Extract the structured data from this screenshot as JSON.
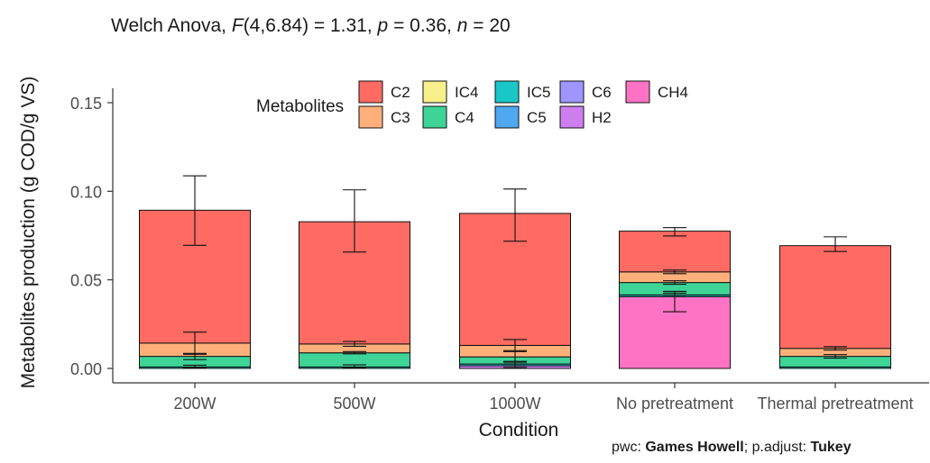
{
  "chart_data": {
    "type": "bar",
    "stacked": true,
    "title_parts": {
      "test": "Welch Anova, ",
      "stat_symbol": "F",
      "stat_args": "(4,6.84) = 1.31, ",
      "p_symbol": "p",
      "p_value": " = 0.36, ",
      "n_symbol": "n",
      "n_value": " = 20"
    },
    "xlabel": "Condition",
    "ylabel": "Metabolites production (g COD/g VS)",
    "ylim": [
      -0.007,
      0.157
    ],
    "yticks": [
      0.0,
      0.05,
      0.1,
      0.15
    ],
    "ytick_labels": [
      "0.00",
      "0.05",
      "0.10",
      "0.15"
    ],
    "categories": [
      "200W",
      "500W",
      "1000W",
      "No pretreatment",
      "Thermal pretreatment"
    ],
    "legend": {
      "title": "Metabolites",
      "position": "top",
      "entries": [
        {
          "label": "C2",
          "color": "#FF6B63"
        },
        {
          "label": "C3",
          "color": "#FFB07A"
        },
        {
          "label": "IC4",
          "color": "#F8F08A"
        },
        {
          "label": "C4",
          "color": "#3ED497"
        },
        {
          "label": "IC5",
          "color": "#19C6C8"
        },
        {
          "label": "C5",
          "color": "#4FA8F0"
        },
        {
          "label": "C6",
          "color": "#9E95FF"
        },
        {
          "label": "H2",
          "color": "#CF7EF0"
        },
        {
          "label": "CH4",
          "color": "#FF72C4"
        }
      ]
    },
    "series": [
      {
        "name": "CH4",
        "color": "#FF72C4",
        "values": [
          0.0,
          0.0,
          0.0,
          0.0405,
          0.0
        ]
      },
      {
        "name": "H2",
        "color": "#CF7EF0",
        "values": [
          0.0,
          0.0,
          0.0015,
          0.0,
          0.0
        ]
      },
      {
        "name": "C6",
        "color": "#9E95FF",
        "values": [
          0.0,
          0.0,
          0.0,
          0.0,
          0.0
        ]
      },
      {
        "name": "C5",
        "color": "#4FA8F0",
        "values": [
          0.0,
          0.0,
          0.0,
          0.0,
          0.0
        ]
      },
      {
        "name": "IC5",
        "color": "#19C6C8",
        "values": [
          0.0008,
          0.0008,
          0.001,
          0.001,
          0.0008
        ]
      },
      {
        "name": "C4",
        "color": "#3ED497",
        "values": [
          0.006,
          0.008,
          0.004,
          0.007,
          0.006
        ]
      },
      {
        "name": "IC4",
        "color": "#F8F08A",
        "values": [
          0.0,
          0.0,
          0.0,
          0.0,
          0.0
        ]
      },
      {
        "name": "C3",
        "color": "#FFB07A",
        "values": [
          0.0075,
          0.005,
          0.0065,
          0.006,
          0.0045
        ]
      },
      {
        "name": "C2",
        "color": "#FF6B63",
        "values": [
          0.075,
          0.069,
          0.0745,
          0.023,
          0.058
        ]
      }
    ],
    "error_bars": [
      {
        "category": "200W",
        "y": 0.0012,
        "low": 0.0005,
        "high": 0.0018
      },
      {
        "category": "200W",
        "y": 0.0065,
        "low": 0.005,
        "high": 0.0085
      },
      {
        "category": "200W",
        "y": 0.0143,
        "low": 0.008,
        "high": 0.0205
      },
      {
        "category": "200W",
        "y": 0.0893,
        "low": 0.0695,
        "high": 0.1087
      },
      {
        "category": "500W",
        "y": 0.0012,
        "low": 0.0005,
        "high": 0.002
      },
      {
        "category": "500W",
        "y": 0.0088,
        "low": 0.0082,
        "high": 0.0095
      },
      {
        "category": "500W",
        "y": 0.0138,
        "low": 0.0125,
        "high": 0.0152
      },
      {
        "category": "500W",
        "y": 0.0828,
        "low": 0.0657,
        "high": 0.1008
      },
      {
        "category": "1000W",
        "y": 0.0015,
        "low": 0.0005,
        "high": 0.0025
      },
      {
        "category": "1000W",
        "y": 0.0025,
        "low": 0.0015,
        "high": 0.004
      },
      {
        "category": "1000W",
        "y": 0.0065,
        "low": 0.0035,
        "high": 0.0095
      },
      {
        "category": "1000W",
        "y": 0.013,
        "low": 0.01,
        "high": 0.0163
      },
      {
        "category": "1000W",
        "y": 0.0875,
        "low": 0.0718,
        "high": 0.1013
      },
      {
        "category": "No pretreatment",
        "y": 0.0405,
        "low": 0.032,
        "high": 0.0435
      },
      {
        "category": "No pretreatment",
        "y": 0.0415,
        "low": 0.0405,
        "high": 0.0425
      },
      {
        "category": "No pretreatment",
        "y": 0.0485,
        "low": 0.0475,
        "high": 0.0495
      },
      {
        "category": "No pretreatment",
        "y": 0.0545,
        "low": 0.0535,
        "high": 0.0555
      },
      {
        "category": "No pretreatment",
        "y": 0.0775,
        "low": 0.0748,
        "high": 0.0795
      },
      {
        "category": "Thermal pretreatment",
        "y": 0.0068,
        "low": 0.0058,
        "high": 0.0078
      },
      {
        "category": "Thermal pretreatment",
        "y": 0.0113,
        "low": 0.0103,
        "high": 0.0123
      },
      {
        "category": "Thermal pretreatment",
        "y": 0.0693,
        "low": 0.066,
        "high": 0.0743
      }
    ],
    "grid": false
  },
  "caption": {
    "pwc_label": "pwc: ",
    "pwc_value": "Games Howell",
    "adjust_label": "; p.adjust: ",
    "adjust_value": "Tukey"
  }
}
